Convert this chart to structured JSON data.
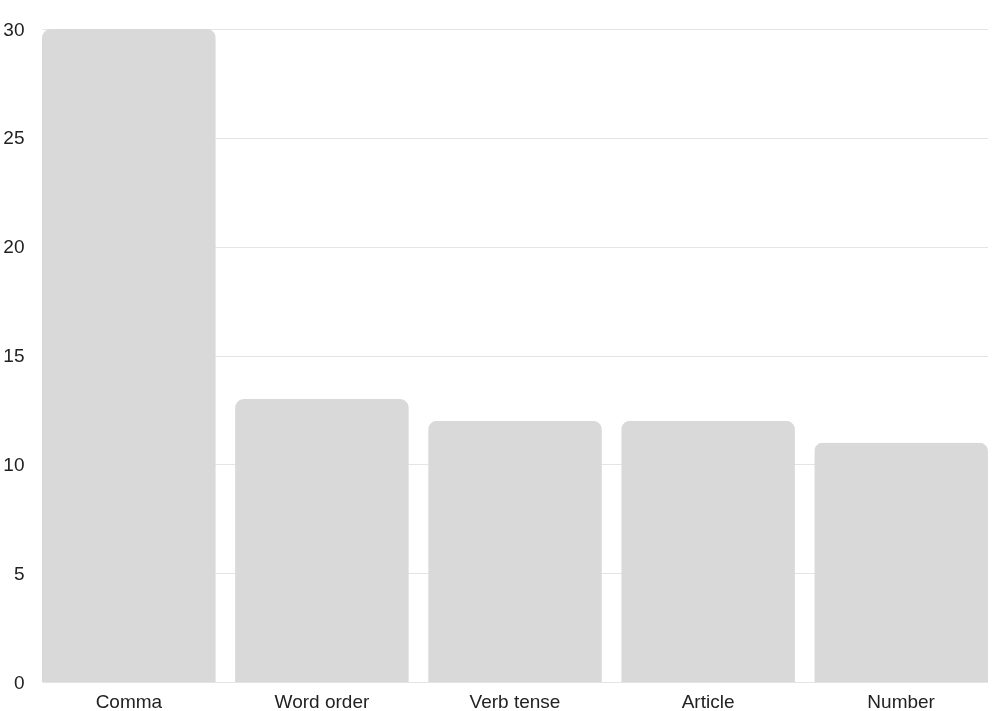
{
  "chart_data": {
    "type": "bar",
    "categories": [
      "Comma",
      "Word order",
      "Verb tense",
      "Article",
      "Number"
    ],
    "values": [
      30,
      13,
      12,
      12,
      11
    ],
    "color": "#d9d9d9",
    "ylim": [
      0,
      30
    ],
    "yticks": [
      0,
      5,
      10,
      15,
      20,
      25,
      30
    ],
    "grid": "y"
  }
}
